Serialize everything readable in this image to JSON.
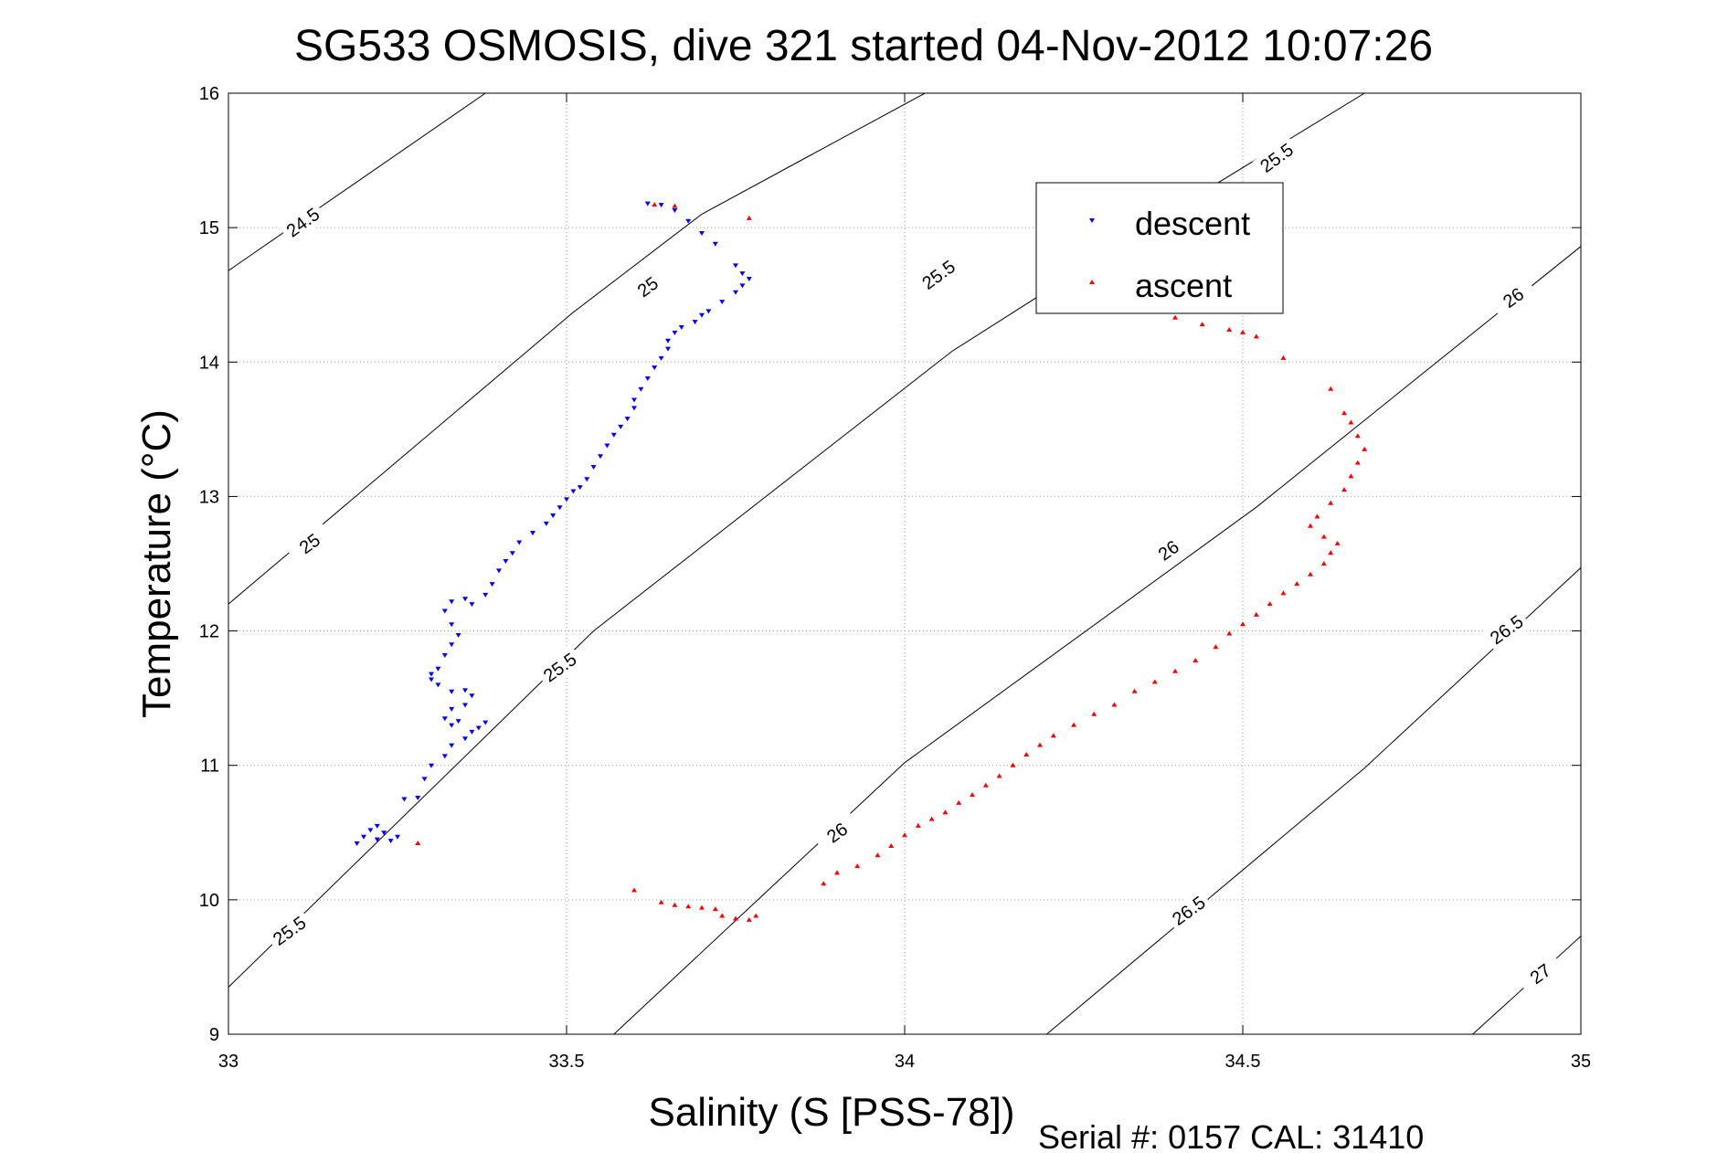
{
  "chart_data": {
    "type": "scatter",
    "title": "SG533 OSMOSIS, dive 321 started 04-Nov-2012 10:07:26",
    "xlabel": "Salinity (S [PSS-78])",
    "ylabel": "Temperature (°C)",
    "xlim": [
      33,
      35
    ],
    "ylim": [
      9,
      16
    ],
    "x_ticks": [
      "33",
      "33.5",
      "34",
      "34.5",
      "35"
    ],
    "y_ticks": [
      "9",
      "10",
      "11",
      "12",
      "13",
      "14",
      "15",
      "16"
    ],
    "grid": true,
    "legend_position": "top-right",
    "series": [
      {
        "name": "descent",
        "color": "#0000ff",
        "marker": "triangle-down",
        "points": [
          [
            33.19,
            10.42
          ],
          [
            33.2,
            10.47
          ],
          [
            33.21,
            10.52
          ],
          [
            33.22,
            10.55
          ],
          [
            33.23,
            10.5
          ],
          [
            33.24,
            10.44
          ],
          [
            33.25,
            10.47
          ],
          [
            33.22,
            10.45
          ],
          [
            33.26,
            10.75
          ],
          [
            33.28,
            10.76
          ],
          [
            33.29,
            10.9
          ],
          [
            33.3,
            11.0
          ],
          [
            33.32,
            11.07
          ],
          [
            33.33,
            11.15
          ],
          [
            33.35,
            11.2
          ],
          [
            33.36,
            11.25
          ],
          [
            33.38,
            11.32
          ],
          [
            33.37,
            11.28
          ],
          [
            33.34,
            11.33
          ],
          [
            33.33,
            11.3
          ],
          [
            33.32,
            11.35
          ],
          [
            33.33,
            11.42
          ],
          [
            33.35,
            11.45
          ],
          [
            33.36,
            11.52
          ],
          [
            33.35,
            11.56
          ],
          [
            33.33,
            11.55
          ],
          [
            33.31,
            11.6
          ],
          [
            33.3,
            11.64
          ],
          [
            33.3,
            11.68
          ],
          [
            33.31,
            11.72
          ],
          [
            33.32,
            11.82
          ],
          [
            33.33,
            11.9
          ],
          [
            33.34,
            11.97
          ],
          [
            33.33,
            12.05
          ],
          [
            33.32,
            12.15
          ],
          [
            33.33,
            12.22
          ],
          [
            33.35,
            12.24
          ],
          [
            33.36,
            12.2
          ],
          [
            33.38,
            12.27
          ],
          [
            33.39,
            12.35
          ],
          [
            33.4,
            12.45
          ],
          [
            33.41,
            12.52
          ],
          [
            33.42,
            12.58
          ],
          [
            33.43,
            12.66
          ],
          [
            33.45,
            12.73
          ],
          [
            33.47,
            12.8
          ],
          [
            33.48,
            12.86
          ],
          [
            33.49,
            12.92
          ],
          [
            33.5,
            12.98
          ],
          [
            33.51,
            13.04
          ],
          [
            33.52,
            13.07
          ],
          [
            33.53,
            13.13
          ],
          [
            33.54,
            13.22
          ],
          [
            33.55,
            13.3
          ],
          [
            33.56,
            13.38
          ],
          [
            33.57,
            13.46
          ],
          [
            33.58,
            13.52
          ],
          [
            33.59,
            13.58
          ],
          [
            33.6,
            13.66
          ],
          [
            33.6,
            13.72
          ],
          [
            33.61,
            13.8
          ],
          [
            33.62,
            13.88
          ],
          [
            33.63,
            13.96
          ],
          [
            33.64,
            14.03
          ],
          [
            33.65,
            14.1
          ],
          [
            33.65,
            14.16
          ],
          [
            33.66,
            14.22
          ],
          [
            33.67,
            14.26
          ],
          [
            33.69,
            14.3
          ],
          [
            33.7,
            14.35
          ],
          [
            33.71,
            14.38
          ],
          [
            33.73,
            14.45
          ],
          [
            33.75,
            14.52
          ],
          [
            33.76,
            14.57
          ],
          [
            33.77,
            14.62
          ],
          [
            33.76,
            14.66
          ],
          [
            33.75,
            14.72
          ],
          [
            33.72,
            14.88
          ],
          [
            33.7,
            14.96
          ],
          [
            33.68,
            15.05
          ],
          [
            33.66,
            15.13
          ],
          [
            33.64,
            15.17
          ],
          [
            33.62,
            15.18
          ]
        ]
      },
      {
        "name": "ascent",
        "color": "#ff0000",
        "marker": "triangle-up",
        "points": [
          [
            33.28,
            10.42
          ],
          [
            33.6,
            10.07
          ],
          [
            33.64,
            9.98
          ],
          [
            33.66,
            9.96
          ],
          [
            33.68,
            9.95
          ],
          [
            33.7,
            9.94
          ],
          [
            33.72,
            9.93
          ],
          [
            33.73,
            9.88
          ],
          [
            33.75,
            9.86
          ],
          [
            33.77,
            9.85
          ],
          [
            33.78,
            9.88
          ],
          [
            33.88,
            10.12
          ],
          [
            33.9,
            10.2
          ],
          [
            33.93,
            10.25
          ],
          [
            33.96,
            10.33
          ],
          [
            33.98,
            10.4
          ],
          [
            34.0,
            10.48
          ],
          [
            34.02,
            10.55
          ],
          [
            34.04,
            10.6
          ],
          [
            34.06,
            10.65
          ],
          [
            34.08,
            10.72
          ],
          [
            34.1,
            10.78
          ],
          [
            34.12,
            10.85
          ],
          [
            34.14,
            10.92
          ],
          [
            34.16,
            11.0
          ],
          [
            34.18,
            11.08
          ],
          [
            34.2,
            11.15
          ],
          [
            34.22,
            11.22
          ],
          [
            34.25,
            11.3
          ],
          [
            34.28,
            11.38
          ],
          [
            34.31,
            11.45
          ],
          [
            34.34,
            11.55
          ],
          [
            34.37,
            11.62
          ],
          [
            34.4,
            11.7
          ],
          [
            34.43,
            11.78
          ],
          [
            34.46,
            11.88
          ],
          [
            34.48,
            11.98
          ],
          [
            34.5,
            12.05
          ],
          [
            34.52,
            12.12
          ],
          [
            34.54,
            12.2
          ],
          [
            34.56,
            12.28
          ],
          [
            34.58,
            12.35
          ],
          [
            34.6,
            12.42
          ],
          [
            34.62,
            12.5
          ],
          [
            34.63,
            12.58
          ],
          [
            34.64,
            12.65
          ],
          [
            34.62,
            12.7
          ],
          [
            34.6,
            12.78
          ],
          [
            34.61,
            12.85
          ],
          [
            34.63,
            12.95
          ],
          [
            34.65,
            13.05
          ],
          [
            34.66,
            13.15
          ],
          [
            34.67,
            13.25
          ],
          [
            34.68,
            13.35
          ],
          [
            34.67,
            13.45
          ],
          [
            34.66,
            13.55
          ],
          [
            34.65,
            13.62
          ],
          [
            34.63,
            13.8
          ],
          [
            34.56,
            14.03
          ],
          [
            34.52,
            14.19
          ],
          [
            34.5,
            14.22
          ],
          [
            34.48,
            14.24
          ],
          [
            34.44,
            14.28
          ],
          [
            34.4,
            14.33
          ],
          [
            33.63,
            15.17
          ],
          [
            33.66,
            15.16
          ],
          [
            33.77,
            15.07
          ]
        ]
      }
    ],
    "contours": [
      {
        "label": "24.5",
        "points": [
          [
            33.0,
            14.68
          ],
          [
            33.38,
            16.0
          ]
        ],
        "label_at": [
          [
            33.11,
            15.04
          ]
        ]
      },
      {
        "label": "25",
        "points": [
          [
            33.0,
            12.2
          ],
          [
            33.51,
            14.37
          ],
          [
            33.7,
            15.1
          ],
          [
            34.03,
            16.0
          ]
        ],
        "label_at": [
          [
            33.12,
            12.65
          ],
          [
            33.62,
            14.56
          ]
        ]
      },
      {
        "label": "25.5",
        "points": [
          [
            33.0,
            9.35
          ],
          [
            33.54,
            12.0
          ],
          [
            34.07,
            14.08
          ],
          [
            34.42,
            15.2
          ],
          [
            34.68,
            16.0
          ]
        ],
        "label_at": [
          [
            33.09,
            9.77
          ],
          [
            33.49,
            11.73
          ],
          [
            34.05,
            14.65
          ],
          [
            34.55,
            15.52
          ]
        ]
      },
      {
        "label": "26",
        "points": [
          [
            33.57,
            9.0
          ],
          [
            34.0,
            11.02
          ],
          [
            34.52,
            12.92
          ],
          [
            35.0,
            14.86
          ]
        ],
        "label_at": [
          [
            33.9,
            10.5
          ],
          [
            34.39,
            12.6
          ],
          [
            34.9,
            14.48
          ]
        ]
      },
      {
        "label": "26.5",
        "points": [
          [
            34.21,
            9.0
          ],
          [
            34.68,
            10.98
          ],
          [
            35.0,
            12.47
          ]
        ],
        "label_at": [
          [
            34.42,
            9.92
          ],
          [
            34.89,
            12.01
          ]
        ]
      },
      {
        "label": "27",
        "points": [
          [
            34.84,
            9.0
          ],
          [
            35.0,
            9.73
          ]
        ],
        "label_at": [
          [
            34.94,
            9.45
          ]
        ]
      }
    ]
  },
  "legend": {
    "descent_label": "descent",
    "ascent_label": "ascent"
  },
  "footer": {
    "serial": "Serial #: 0157  CAL: 31410"
  }
}
